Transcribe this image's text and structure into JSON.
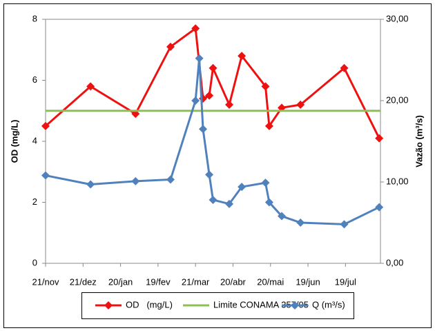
{
  "chart_data": {
    "type": "line",
    "y_label": "OD (mg/L)",
    "y2_label": "Vazão (m³/s)",
    "xlim": [
      0,
      268
    ],
    "xticks": [
      {
        "value": 0,
        "label": "21/nov"
      },
      {
        "value": 30,
        "label": "21/dez"
      },
      {
        "value": 60,
        "label": "20/jan"
      },
      {
        "value": 90,
        "label": "19/fev"
      },
      {
        "value": 120,
        "label": "21/mar"
      },
      {
        "value": 150,
        "label": "20/abr"
      },
      {
        "value": 180,
        "label": "20/mai"
      },
      {
        "value": 210,
        "label": "19/jun"
      },
      {
        "value": 240,
        "label": "19/jul"
      }
    ],
    "ylim": [
      0,
      8
    ],
    "yticks": [
      0,
      2,
      4,
      6,
      8
    ],
    "y2lim": [
      0,
      30
    ],
    "y2ticks": [
      {
        "value": 0,
        "label": "0,00"
      },
      {
        "value": 10,
        "label": "10,00"
      },
      {
        "value": 20,
        "label": "20,00"
      },
      {
        "value": 30,
        "label": "30,00"
      }
    ],
    "series": [
      {
        "name": "OD   (mg/L)",
        "color": "#ee1111",
        "marker": "diamond",
        "x": [
          0,
          36,
          72,
          100,
          120,
          126,
          131,
          134,
          147,
          157,
          176,
          179,
          189,
          204,
          239,
          267
        ],
        "values": [
          4.5,
          5.8,
          4.9,
          7.1,
          7.7,
          5.4,
          5.5,
          6.4,
          5.2,
          6.8,
          5.8,
          4.5,
          5.1,
          5.2,
          6.4,
          4.1
        ]
      },
      {
        "name": "Limite CONAMA 357/05",
        "color": "#8cc152",
        "marker": "none",
        "x": [
          0,
          268
        ],
        "values": [
          5,
          5
        ]
      },
      {
        "name": "Q (m³/s)",
        "color": "#4f81bd",
        "marker": "diamond",
        "axis": "y2",
        "x": [
          0,
          36,
          72,
          100,
          120,
          123,
          126,
          131,
          134,
          147,
          157,
          176,
          179,
          189,
          204,
          239,
          267
        ],
        "values": [
          10.8,
          9.7,
          10.1,
          10.3,
          20.0,
          25.2,
          16.5,
          10.9,
          7.8,
          7.3,
          9.4,
          9.9,
          7.5,
          5.8,
          5.0,
          4.8,
          6.9
        ]
      }
    ]
  }
}
